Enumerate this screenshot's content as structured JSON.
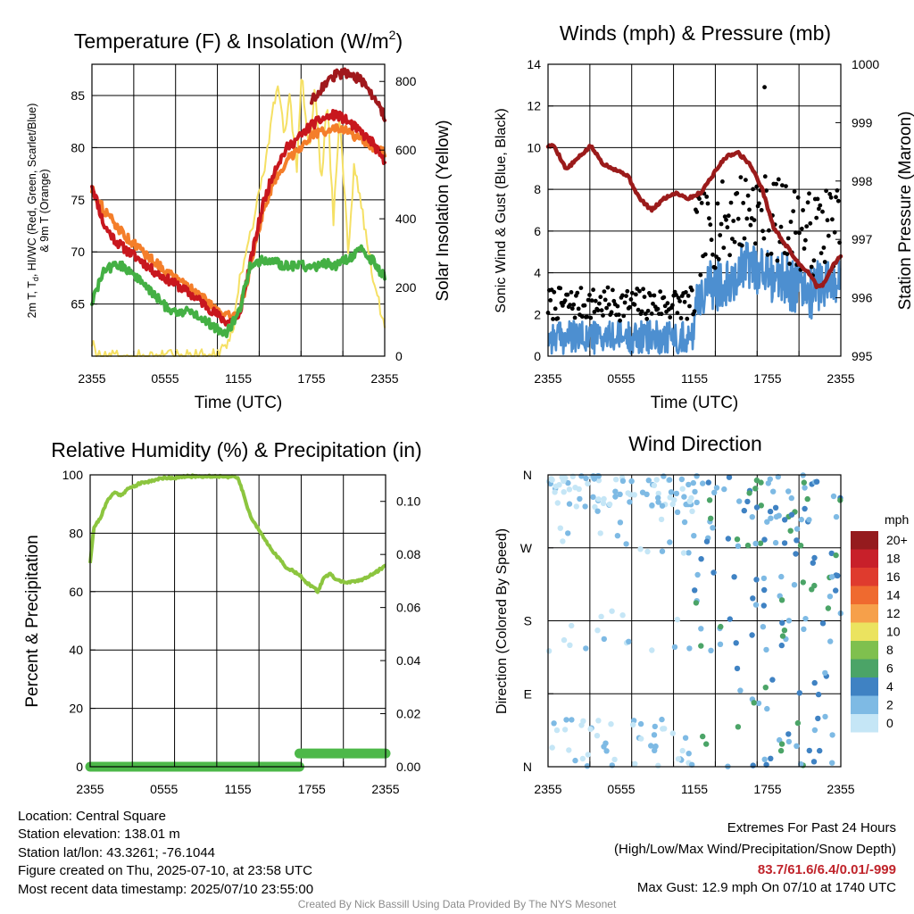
{
  "charts": {
    "temperature": {
      "title": "Temperature (F) & Insolation (W/m",
      "title_sup": "2",
      "title_close": ")",
      "ylabel_left_line1": "2m T, T",
      "ylabel_left_sub": "d",
      "ylabel_left_line1_rest": ", HI/WC (Red, Green, Scarlet/Blue)",
      "ylabel_left_line2": "& 9m T (Orange)",
      "ylabel_right": "Solar Insolation (Yellow)",
      "xlabel": "Time (UTC)"
    },
    "winds": {
      "title": "Winds (mph) & Pressure (mb)",
      "ylabel_left": "Sonic Wind & Gust (Blue, Black)",
      "ylabel_right": "Station Pressure (Maroon)",
      "xlabel": "Time (UTC)"
    },
    "humidity": {
      "title": "Relative Humidity (%) & Precipitation (in)",
      "ylabel_left": "Percent & Precipitation"
    },
    "direction": {
      "title": "Wind Direction",
      "ylabel_left": "Direction (Colored By Speed)",
      "legend_title": "mph"
    }
  },
  "chart_data": [
    {
      "type": "line",
      "x_ticks": [
        "2355",
        "0555",
        "1155",
        "1755",
        "2355"
      ],
      "ylim": [
        60,
        88
      ],
      "yticks": [
        65,
        70,
        75,
        80,
        85
      ],
      "ylim_right": [
        0,
        850
      ],
      "yticks_right": [
        0,
        200,
        400,
        600,
        800
      ],
      "grid": true,
      "series": [
        {
          "name": "2m T",
          "color": "#c8171e",
          "axis": "left",
          "hours": [
            0,
            1,
            2,
            3,
            4,
            5,
            6,
            7,
            8,
            9,
            10,
            11,
            12,
            13,
            14,
            15,
            16,
            17,
            18,
            19,
            20,
            21,
            22,
            23,
            24
          ],
          "values": [
            76.5,
            72.5,
            71,
            70,
            69.2,
            68.2,
            67.5,
            66.8,
            66,
            65.2,
            64.2,
            63.3,
            63.5,
            69,
            74.5,
            78,
            80,
            81,
            82.2,
            82.8,
            83.2,
            82.5,
            81.5,
            80.5,
            78.5
          ]
        },
        {
          "name": "9m T",
          "color": "#f47e2a",
          "axis": "left",
          "hours": [
            0,
            1,
            2,
            3,
            4,
            5,
            6,
            7,
            8,
            9,
            10,
            11,
            12,
            13,
            14,
            15,
            16,
            17,
            18,
            19,
            20,
            21,
            22,
            23,
            24
          ],
          "values": [
            76,
            74,
            72.5,
            71.2,
            70.2,
            69.2,
            68.2,
            67.3,
            66.5,
            65.7,
            64.8,
            63.8,
            64,
            68.5,
            73.8,
            77,
            78.8,
            80,
            81.2,
            81.6,
            81.8,
            81.5,
            80.8,
            80,
            79.5
          ]
        },
        {
          "name": "HI/WC",
          "color": "#a0181c",
          "axis": "left",
          "hours": [
            18,
            19,
            20,
            21,
            22,
            23,
            24
          ],
          "values": [
            84.5,
            86,
            87,
            87.2,
            86.5,
            85,
            83
          ]
        },
        {
          "name": "Td",
          "color": "#44b044",
          "axis": "left",
          "hours": [
            0,
            1,
            2,
            3,
            4,
            5,
            6,
            7,
            8,
            9,
            10,
            11,
            12,
            13,
            14,
            15,
            16,
            17,
            18,
            19,
            20,
            21,
            22,
            23,
            24
          ],
          "values": [
            65.2,
            68.2,
            68.8,
            68.3,
            67.2,
            66,
            64.8,
            64.2,
            64.3,
            63.7,
            62.8,
            62.2,
            64,
            68.8,
            69.2,
            69,
            68.6,
            68.8,
            68.4,
            69,
            68.7,
            69.3,
            70.2,
            69.2,
            67.5
          ]
        },
        {
          "name": "Solar Insolation",
          "color": "#f5e064",
          "axis": "right",
          "hours": [
            0,
            0.5,
            1,
            2,
            4,
            6,
            8,
            9.5,
            10.5,
            11.5,
            12,
            13,
            14,
            14.8,
            15.2,
            15.8,
            16.2,
            16.8,
            17.2,
            17.8,
            18.3,
            18.8,
            19.3,
            19.8,
            20.3,
            21,
            21.5,
            22,
            23,
            24
          ],
          "values": [
            40,
            5,
            0,
            0,
            0,
            0,
            0,
            0,
            5,
            60,
            200,
            360,
            520,
            700,
            800,
            640,
            760,
            540,
            820,
            600,
            780,
            500,
            750,
            380,
            720,
            300,
            560,
            450,
            240,
            80
          ]
        }
      ]
    },
    {
      "type": "scatter",
      "x_ticks": [
        "2355",
        "0555",
        "1155",
        "1755",
        "2355"
      ],
      "ylim": [
        0,
        14
      ],
      "yticks": [
        0,
        2,
        4,
        6,
        8,
        10,
        12,
        14
      ],
      "ylim_right": [
        995,
        1000
      ],
      "yticks_right": [
        995,
        996,
        997,
        998,
        999,
        1000
      ],
      "grid": true,
      "series": [
        {
          "name": "Sonic Wind",
          "color": "#4d8fd0",
          "axis": "left"
        },
        {
          "name": "Gust",
          "color": "#000000",
          "axis": "left"
        },
        {
          "name": "Station Pressure",
          "color": "#9b1b1b",
          "axis": "right",
          "hours": [
            0,
            0.5,
            1.5,
            2.5,
            3.5,
            4.5,
            5.5,
            6.5,
            7.5,
            8.5,
            9.5,
            10.5,
            11.5,
            12.5,
            13.5,
            14.5,
            15.5,
            16.5,
            17.5,
            18.5,
            19.5,
            20.5,
            21.5,
            22,
            22.5,
            23,
            23.5,
            24
          ],
          "values": [
            998.6,
            998.6,
            998.2,
            998.4,
            998.6,
            998.3,
            998.2,
            998.1,
            997.7,
            997.5,
            997.7,
            997.8,
            997.7,
            997.8,
            998.1,
            998.4,
            998.5,
            998.3,
            997.9,
            997.2,
            996.9,
            996.6,
            996.4,
            996.2,
            996.2,
            996.4,
            996.6,
            996.7
          ]
        }
      ],
      "wind_max": 12.9,
      "gust_max": 12.9
    },
    {
      "type": "line",
      "x_ticks": [
        "2355",
        "0555",
        "1155",
        "1755",
        "2355"
      ],
      "ylim": [
        0,
        100
      ],
      "yticks": [
        0,
        20,
        40,
        60,
        80,
        100
      ],
      "ylim_right": [
        0,
        0.11
      ],
      "yticks_right": [
        "0.00",
        "0.02",
        "0.04",
        "0.06",
        "0.08",
        "0.10"
      ],
      "grid": true,
      "series": [
        {
          "name": "Relative Humidity",
          "color": "#8cc53f",
          "axis": "left",
          "hours": [
            0,
            0.3,
            0.8,
            1.5,
            2,
            2.5,
            3,
            3.5,
            4,
            5,
            6,
            7,
            8,
            9,
            10,
            11,
            12,
            12.5,
            13,
            14,
            15,
            16,
            17,
            17.5,
            18,
            18.5,
            19,
            19.5,
            20,
            21,
            22,
            23,
            24
          ],
          "values": [
            70,
            82,
            85,
            92,
            94,
            93,
            95,
            96,
            97,
            98,
            99,
            99,
            99.5,
            99.5,
            99.5,
            99.5,
            99,
            93,
            86,
            79,
            73,
            68,
            66,
            63,
            62,
            60,
            65,
            66,
            64,
            63,
            64,
            66,
            69
          ]
        },
        {
          "name": "Precipitation",
          "color": "#4db849",
          "axis": "right",
          "hours": [
            0,
            17,
            17,
            24
          ],
          "values": [
            0.0,
            0.0,
            0.005,
            0.005
          ]
        }
      ]
    },
    {
      "type": "scatter",
      "x_ticks": [
        "2355",
        "0555",
        "1155",
        "1755",
        "2355"
      ],
      "y_ticks": [
        "N",
        "E",
        "S",
        "W",
        "N"
      ],
      "ylim": [
        0,
        360
      ],
      "grid": true,
      "legend": {
        "title": "mph",
        "entries": [
          {
            "label": "20+",
            "color": "#951b1e"
          },
          {
            "label": "18",
            "color": "#c8202a"
          },
          {
            "label": "16",
            "color": "#df3b2e"
          },
          {
            "label": "14",
            "color": "#ef6a2f"
          },
          {
            "label": "12",
            "color": "#f6a04a"
          },
          {
            "label": "10",
            "color": "#ebe35f"
          },
          {
            "label": "8",
            "color": "#7fc04e"
          },
          {
            "label": "6",
            "color": "#4ba467"
          },
          {
            "label": "4",
            "color": "#3f82c3"
          },
          {
            "label": "2",
            "color": "#7ebae4"
          },
          {
            "label": "0",
            "color": "#c5e6f6"
          }
        ],
        "placement": "right"
      }
    }
  ],
  "info": {
    "location": "Location: Central Square",
    "elevation": "Station elevation: 138.01 m",
    "latlon": "Station lat/lon: 43.3261; -76.1044",
    "created": "Figure created on Thu, 2025-07-10, at 23:58 UTC",
    "recent": "Most recent data timestamp: 2025/07/10 23:55:00"
  },
  "extremes": {
    "title": "Extremes For Past 24 Hours",
    "subtitle": "(High/Low/Max Wind/Precipitation/Snow Depth)",
    "values": "83.7/61.6/6.4/0.01/-999",
    "gust": "Max Gust: 12.9 mph On 07/10 at 1740 UTC"
  },
  "credit": "Created By Nick Bassill Using Data Provided By The NYS Mesonet"
}
